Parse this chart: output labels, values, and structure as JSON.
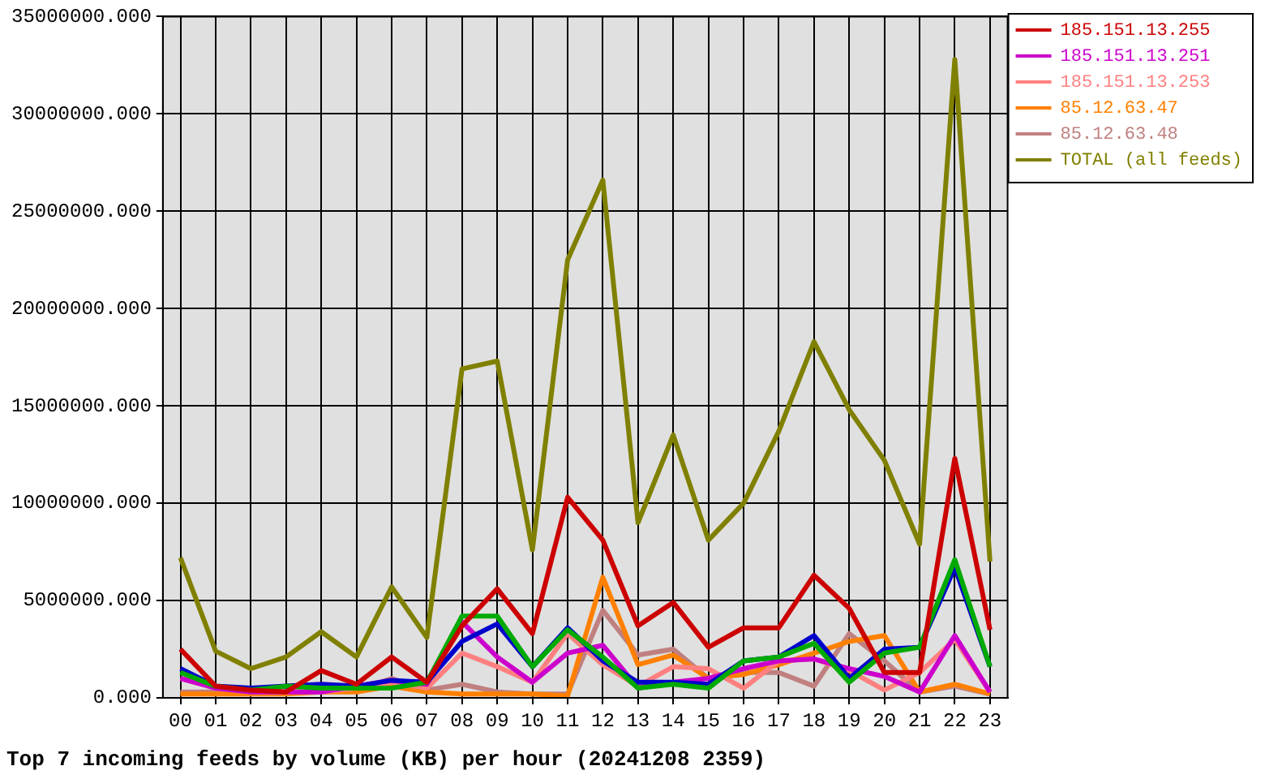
{
  "chart_data": {
    "type": "line",
    "title": "Top 7 incoming feeds by volume (KB) per hour (20241208 2359)",
    "categories": [
      "00",
      "01",
      "02",
      "03",
      "04",
      "05",
      "06",
      "07",
      "08",
      "09",
      "10",
      "11",
      "12",
      "13",
      "14",
      "15",
      "16",
      "17",
      "18",
      "19",
      "20",
      "21",
      "22",
      "23"
    ],
    "series": [
      {
        "name": "185.151.13.255",
        "color": "#cc0000",
        "values": [
          2500000,
          600000,
          400000,
          300000,
          1400000,
          700000,
          2100000,
          800000,
          3700000,
          5600000,
          3300000,
          10300000,
          8100000,
          3700000,
          4900000,
          2600000,
          3600000,
          3600000,
          6300000,
          4600000,
          1300000,
          1300000,
          12300000,
          3500000
        ]
      },
      {
        "color": "#00aa00",
        "values": [
          1300000,
          600000,
          400000,
          600000,
          500000,
          500000,
          500000,
          800000,
          4200000,
          4200000,
          1600000,
          3500000,
          2100000,
          500000,
          700000,
          500000,
          1900000,
          2100000,
          2800000,
          800000,
          2300000,
          2600000,
          7100000,
          1600000
        ]
      },
      {
        "color": "#0000cc",
        "values": [
          1500000,
          600000,
          500000,
          600000,
          700000,
          600000,
          900000,
          800000,
          2900000,
          3800000,
          1600000,
          3600000,
          1900000,
          800000,
          800000,
          700000,
          1900000,
          2100000,
          3200000,
          1000000,
          2500000,
          2600000,
          6700000,
          1600000
        ]
      },
      {
        "name": "185.151.13.251",
        "color": "#cc00cc",
        "values": [
          1000000,
          500000,
          300000,
          300000,
          300000,
          600000,
          900000,
          700000,
          3900000,
          2100000,
          800000,
          2300000,
          2700000,
          500000,
          800000,
          1000000,
          1500000,
          1900000,
          2000000,
          1500000,
          1100000,
          300000,
          3200000,
          300000
        ]
      },
      {
        "name": "185.151.13.253",
        "color": "#ff8080",
        "values": [
          1000000,
          500000,
          300000,
          300000,
          300000,
          500000,
          800000,
          500000,
          2300000,
          1600000,
          800000,
          3300000,
          1700000,
          600000,
          1600000,
          1500000,
          500000,
          1900000,
          2000000,
          1400000,
          400000,
          1300000,
          3000000,
          300000
        ]
      },
      {
        "name": "85.12.63.47",
        "color": "#ff8000",
        "values": [
          200000,
          200000,
          200000,
          200000,
          300000,
          300000,
          600000,
          300000,
          200000,
          200000,
          200000,
          100000,
          6200000,
          1700000,
          2200000,
          1000000,
          1200000,
          1700000,
          2300000,
          2900000,
          3200000,
          300000,
          700000,
          200000
        ]
      },
      {
        "name": "85.12.63.48",
        "color": "#c08080",
        "values": [
          300000,
          300000,
          300000,
          300000,
          300000,
          400000,
          1000000,
          400000,
          700000,
          300000,
          200000,
          200000,
          4500000,
          2200000,
          2500000,
          1000000,
          1300000,
          1300000,
          600000,
          3300000,
          1900000,
          300000,
          600000,
          200000
        ]
      },
      {
        "name": "TOTAL (all feeds)",
        "color": "#808000",
        "values": [
          7200000,
          2400000,
          1500000,
          2100000,
          3400000,
          2100000,
          5700000,
          3100000,
          16900000,
          17300000,
          7600000,
          22500000,
          26600000,
          9000000,
          13500000,
          8100000,
          10000000,
          13700000,
          18300000,
          14800000,
          12200000,
          7900000,
          32800000,
          7000000
        ]
      }
    ],
    "ylim": [
      0,
      35000000
    ],
    "yticks": [
      {
        "value": 0,
        "label": "0.000"
      },
      {
        "value": 5000000,
        "label": "5000000.000"
      },
      {
        "value": 10000000,
        "label": "10000000.000"
      },
      {
        "value": 15000000,
        "label": "15000000.000"
      },
      {
        "value": 20000000,
        "label": "20000000.000"
      },
      {
        "value": 25000000,
        "label": "25000000.000"
      },
      {
        "value": 30000000,
        "label": "30000000.000"
      },
      {
        "value": 35000000,
        "label": "35000000.000"
      }
    ],
    "grid": true,
    "legend": "top right",
    "marker": "none",
    "line_style": "solid"
  }
}
